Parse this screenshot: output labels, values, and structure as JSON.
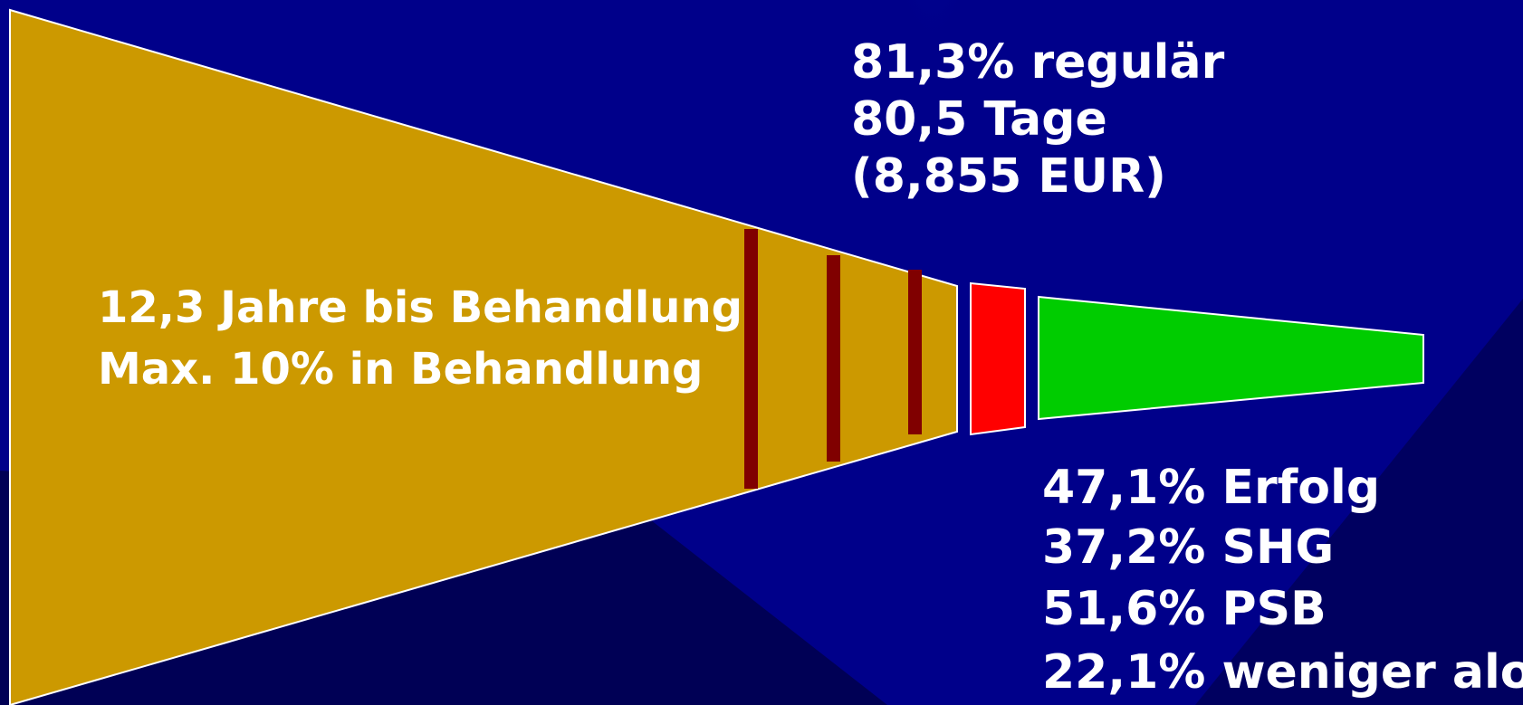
{
  "left_text": [
    "12,3 Jahre bis Behandlung",
    "Max. 10% in Behandlung"
  ],
  "top_right_text": [
    "81,3% regulär",
    "80,5 Tage",
    "(8,855 EUR)"
  ],
  "bottom_right_text": [
    "47,1% Erfolg",
    "37,2% SHG",
    "51,6% PSB",
    "22,1% weniger alo"
  ]
}
